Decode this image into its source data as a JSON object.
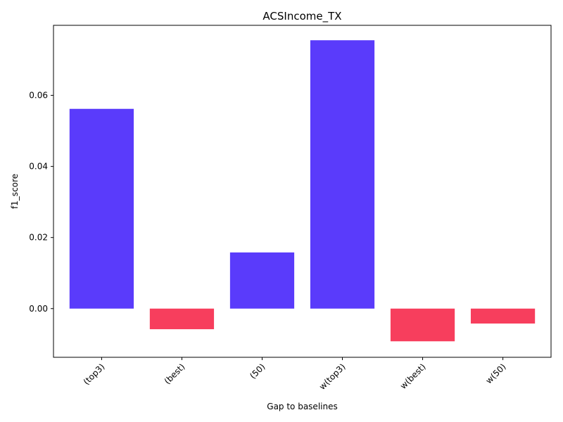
{
  "chart_data": {
    "type": "bar",
    "title": "ACSIncome_TX",
    "xlabel": "Gap to baselines",
    "ylabel": "f1_score",
    "categories": [
      "(top3)",
      "(best)",
      "(50)",
      "w(top3)",
      "w(best)",
      "w(50)"
    ],
    "values": [
      0.0562,
      -0.0058,
      0.0158,
      0.0755,
      -0.0092,
      -0.0042
    ],
    "ylim": [
      -0.0137,
      0.0797
    ],
    "yticks": [
      0.0,
      0.02,
      0.04,
      0.06
    ],
    "ytick_labels": [
      "0.00",
      "0.02",
      "0.04",
      "0.06"
    ],
    "grid": false,
    "legend": "none",
    "colors": {
      "positive": "#5a3bfb",
      "negative": "#f73e5d"
    }
  }
}
